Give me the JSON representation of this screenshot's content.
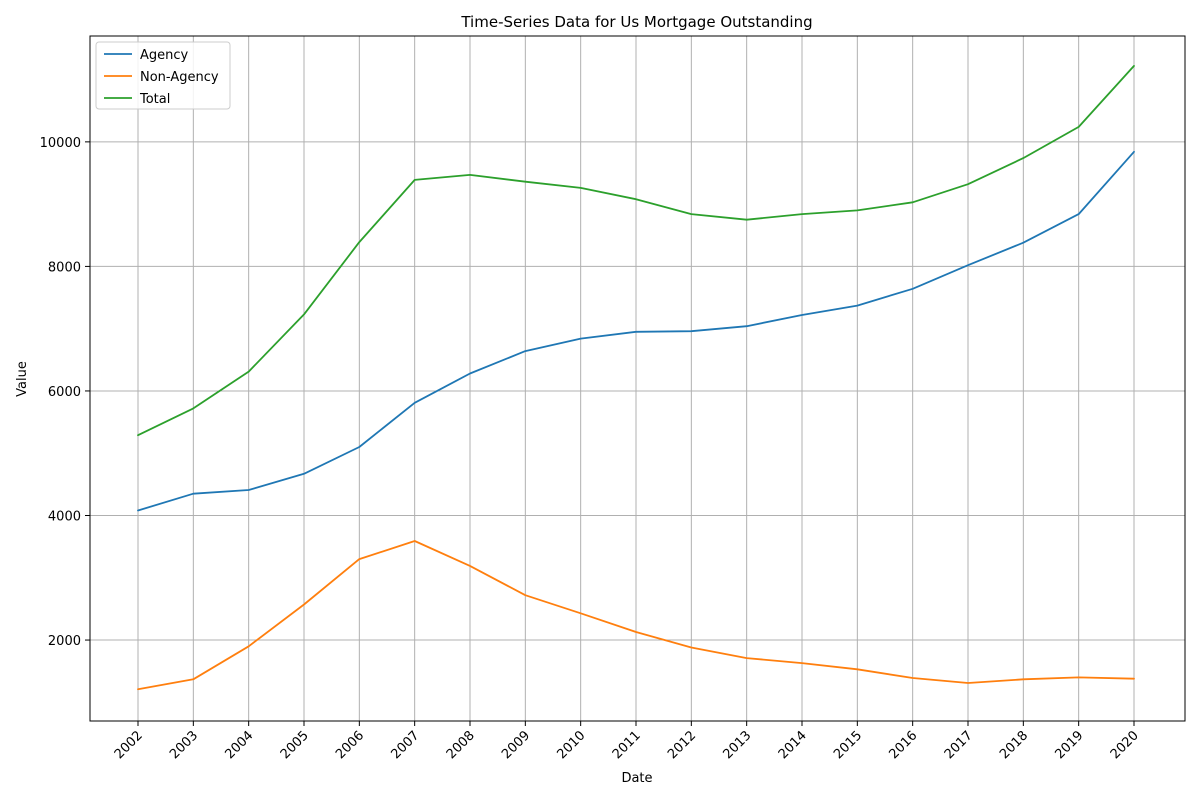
{
  "chart_data": {
    "type": "line",
    "title": "Time-Series Data for Us Mortgage Outstanding",
    "xlabel": "Date",
    "ylabel": "Value",
    "x": [
      "2002",
      "2003",
      "2004",
      "2005",
      "2006",
      "2007",
      "2008",
      "2009",
      "2010",
      "2011",
      "2012",
      "2013",
      "2014",
      "2015",
      "2016",
      "2017",
      "2018",
      "2019",
      "2020"
    ],
    "ylim": [
      700,
      11700
    ],
    "yticks": [
      2000,
      4000,
      6000,
      8000,
      10000
    ],
    "grid": true,
    "legend_position": "top-left",
    "series": [
      {
        "name": "Agency",
        "color": "#1f77b4",
        "values": [
          4080,
          4350,
          4410,
          4670,
          5100,
          5810,
          6280,
          6640,
          6840,
          6950,
          6960,
          7040,
          7220,
          7370,
          7640,
          8020,
          8380,
          8840,
          9840
        ]
      },
      {
        "name": "Non-Agency",
        "color": "#ff7f0e",
        "values": [
          1210,
          1370,
          1900,
          2570,
          3300,
          3590,
          3190,
          2720,
          2430,
          2130,
          1880,
          1710,
          1630,
          1530,
          1390,
          1310,
          1370,
          1400,
          1380
        ]
      },
      {
        "name": "Total",
        "color": "#2ca02c",
        "values": [
          5290,
          5720,
          6310,
          7230,
          8390,
          9390,
          9470,
          9360,
          9260,
          9080,
          8840,
          8750,
          8840,
          8900,
          9030,
          9320,
          9740,
          10240,
          11220
        ]
      }
    ]
  }
}
